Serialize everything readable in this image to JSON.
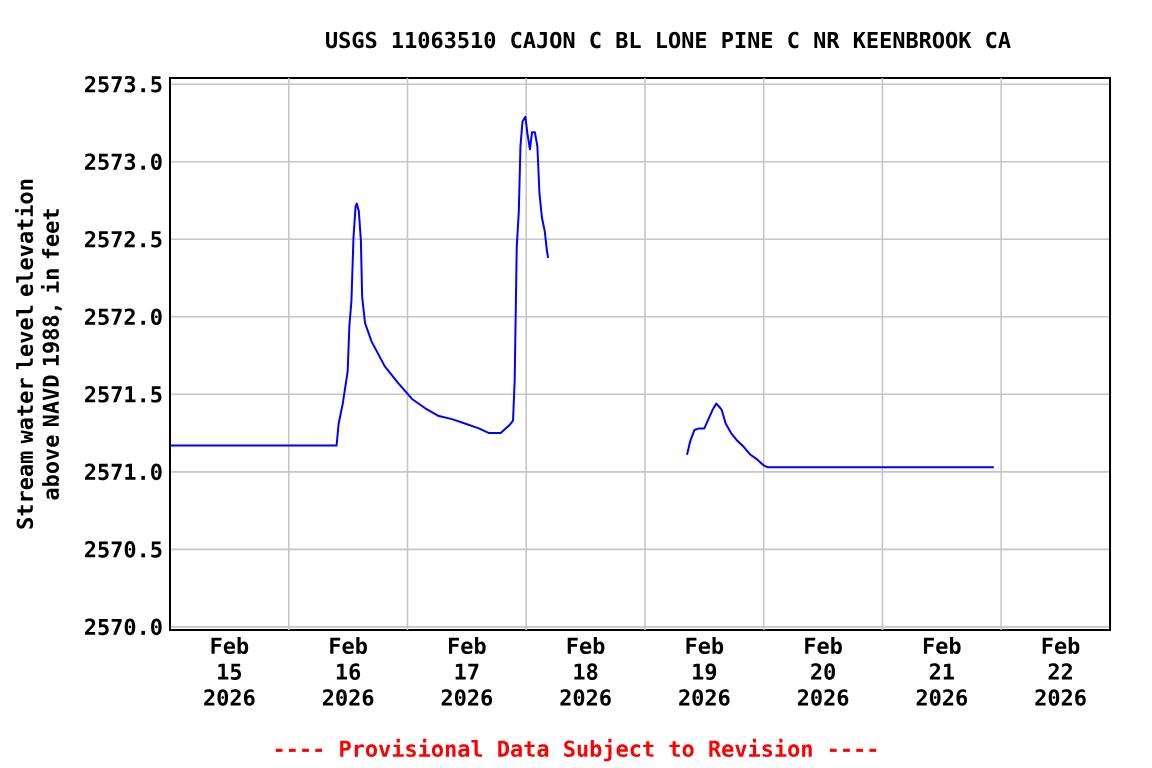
{
  "chart_data": {
    "type": "line",
    "title": "USGS 11063510 CAJON C BL LONE PINE C NR KEENBROOK CA",
    "ylabel": "Stream water level elevation above NAVD 1988, in feet",
    "annotations": [
      "---- Provisional Data Subject to Revision ----"
    ],
    "x": [
      "2026-02-15T00:00",
      "2026-02-16T09:40",
      "2026-02-16T10:05",
      "2026-02-16T10:55",
      "2026-02-16T11:55",
      "2026-02-16T12:15",
      "2026-02-16T12:40",
      "2026-02-16T13:05",
      "2026-02-16T13:30",
      "2026-02-16T13:45",
      "2026-02-16T14:10",
      "2026-02-16T14:35",
      "2026-02-16T14:50",
      "2026-02-16T15:25",
      "2026-02-16T16:45",
      "2026-02-16T19:25",
      "2026-02-16T22:10",
      "2026-02-17T00:55",
      "2026-02-17T03:35",
      "2026-02-17T06:20",
      "2026-02-17T09:00",
      "2026-02-17T11:45",
      "2026-02-17T14:25",
      "2026-02-17T16:30",
      "2026-02-17T18:50",
      "2026-02-17T20:35",
      "2026-02-17T21:20",
      "2026-02-17T21:40",
      "2026-02-17T22:05",
      "2026-02-17T22:30",
      "2026-02-17T22:50",
      "2026-02-17T23:15",
      "2026-02-17T23:50",
      "2026-02-18T00:15",
      "2026-02-18T00:45",
      "2026-02-18T01:10",
      "2026-02-18T01:45",
      "2026-02-18T02:15",
      "2026-02-18T02:40",
      "2026-02-18T03:10",
      "2026-02-18T03:45",
      "2026-02-18T04:10",
      "2026-02-18T04:25",
      "2026-02-18T04:30",
      "2026-02-19T08:30",
      "2026-02-19T09:10",
      "2026-02-19T10:00",
      "2026-02-19T10:55",
      "2026-02-19T12:00",
      "2026-02-19T12:50",
      "2026-02-19T13:40",
      "2026-02-19T14:25",
      "2026-02-19T15:00",
      "2026-02-19T15:30",
      "2026-02-19T16:20",
      "2026-02-19T17:25",
      "2026-02-19T18:40",
      "2026-02-19T20:00",
      "2026-02-19T21:20",
      "2026-02-19T22:40",
      "2026-02-20T00:05",
      "2026-02-20T00:45",
      "2026-02-21T22:30"
    ],
    "series": [
      {
        "color": "#0000ff",
        "values": [
          2571.17,
          2571.17,
          2571.31,
          2571.44,
          2571.65,
          2571.94,
          2572.1,
          2572.51,
          2572.71,
          2572.73,
          2572.68,
          2572.49,
          2572.13,
          2571.96,
          2571.84,
          2571.68,
          2571.57,
          2571.47,
          2571.41,
          2571.36,
          2571.34,
          2571.31,
          2571.28,
          2571.25,
          2571.25,
          2571.3,
          2571.33,
          2571.59,
          2572.45,
          2572.68,
          2573.1,
          2573.26,
          2573.29,
          2573.18,
          2573.08,
          2573.19,
          2573.19,
          2573.1,
          2572.8,
          2572.64,
          2572.55,
          2572.43,
          2572.38,
          null,
          2571.11,
          2571.2,
          2571.27,
          2571.28,
          2571.28,
          2571.34,
          2571.4,
          2571.44,
          2571.42,
          2571.4,
          2571.31,
          2571.25,
          2571.2,
          2571.16,
          2571.11,
          2571.08,
          2571.04,
          2571.03,
          2571.03
        ]
      }
    ],
    "xlim": [
      "2026-02-15T00:00",
      "2026-02-22T22:00"
    ],
    "xticks": [
      {
        "value": "2026-02-15T12:00",
        "label": "Feb 15 2026"
      },
      {
        "value": "2026-02-16T00:00",
        "label": null
      },
      {
        "value": "2026-02-16T12:00",
        "label": "Feb 16 2026"
      },
      {
        "value": "2026-02-17T00:00",
        "label": null
      },
      {
        "value": "2026-02-17T12:00",
        "label": "Feb 17 2026"
      },
      {
        "value": "2026-02-18T00:00",
        "label": null
      },
      {
        "value": "2026-02-18T12:00",
        "label": "Feb 18 2026"
      },
      {
        "value": "2026-02-19T00:00",
        "label": null
      },
      {
        "value": "2026-02-19T12:00",
        "label": "Feb 19 2026"
      },
      {
        "value": "2026-02-20T00:00",
        "label": null
      },
      {
        "value": "2026-02-20T12:00",
        "label": "Feb 20 2026"
      },
      {
        "value": "2026-02-21T00:00",
        "label": null
      },
      {
        "value": "2026-02-21T12:00",
        "label": "Feb 21 2026"
      },
      {
        "value": "2026-02-22T00:00",
        "label": null
      },
      {
        "value": "2026-02-22T12:00",
        "label": "Feb 22 2026"
      }
    ],
    "ylim": [
      2569.98,
      2573.54
    ],
    "yticks": [
      {
        "value": 2570,
        "label": "2570.0"
      },
      {
        "value": 2570.5,
        "label": "2570.5"
      },
      {
        "value": 2571,
        "label": "2571.0"
      },
      {
        "value": 2571.5,
        "label": "2571.5"
      },
      {
        "value": 2572,
        "label": "2572.0"
      },
      {
        "value": 2572.5,
        "label": "2572.5"
      },
      {
        "value": 2573,
        "label": "2573.0"
      },
      {
        "value": 2573.5,
        "label": "2573.5"
      }
    ],
    "grid": true,
    "marker": "none",
    "line_style": "solid",
    "legend": false
  }
}
